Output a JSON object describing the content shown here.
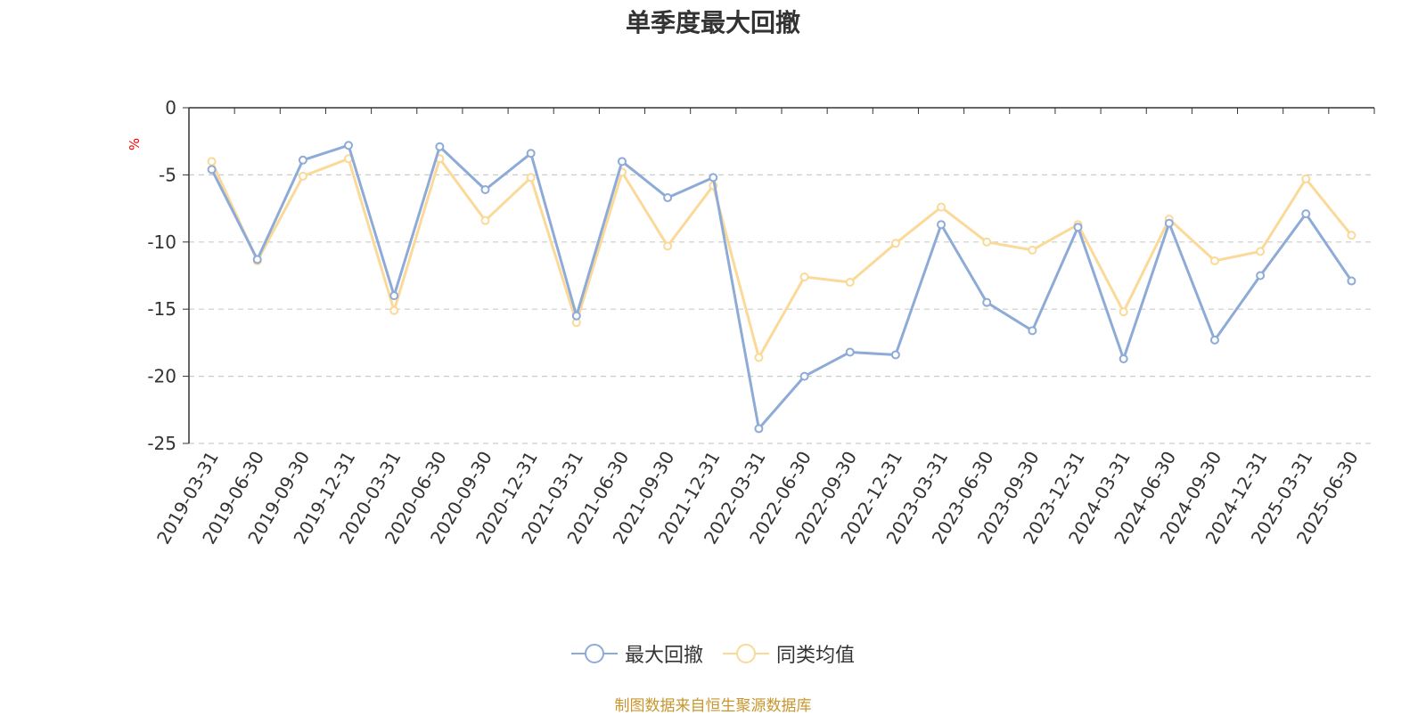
{
  "chart_data": {
    "type": "line",
    "title": "单季度最大回撤",
    "ylabel": "%",
    "xlabel": "",
    "ylim": [
      -25,
      0
    ],
    "yticks": [
      0,
      -5,
      -10,
      -15,
      -20,
      -25
    ],
    "grid": true,
    "legend_position": "bottom-center",
    "categories": [
      "2019-03-31",
      "2019-06-30",
      "2019-09-30",
      "2019-12-31",
      "2020-03-31",
      "2020-06-30",
      "2020-09-30",
      "2020-12-31",
      "2021-03-31",
      "2021-06-30",
      "2021-09-30",
      "2021-12-31",
      "2022-03-31",
      "2022-06-30",
      "2022-09-30",
      "2022-12-31",
      "2023-03-31",
      "2023-06-30",
      "2023-09-30",
      "2023-12-31",
      "2024-03-31",
      "2024-06-30",
      "2024-09-30",
      "2024-12-31",
      "2025-03-31",
      "2025-06-30"
    ],
    "series": [
      {
        "name": "最大回撤",
        "color": "#8eabd8",
        "values": [
          -4.6,
          -11.3,
          -3.9,
          -2.8,
          -14.0,
          -2.9,
          -6.1,
          -3.4,
          -15.5,
          -4.0,
          -6.7,
          -5.2,
          -23.9,
          -20.0,
          -18.2,
          -18.4,
          -8.7,
          -14.5,
          -16.6,
          -8.9,
          -18.7,
          -8.6,
          -17.3,
          -12.5,
          -7.9,
          -12.9
        ]
      },
      {
        "name": "同类均值",
        "color": "#fad999",
        "values": [
          -4.0,
          -11.4,
          -5.1,
          -3.8,
          -15.1,
          -3.8,
          -8.4,
          -5.2,
          -16.0,
          -4.8,
          -10.3,
          -5.8,
          -18.6,
          -12.6,
          -13.0,
          -10.1,
          -7.4,
          -10.0,
          -10.6,
          -8.7,
          -15.2,
          -8.3,
          -11.4,
          -10.7,
          -5.3,
          -9.5
        ]
      }
    ],
    "source_note": "制图数据来自恒生聚源数据库"
  }
}
